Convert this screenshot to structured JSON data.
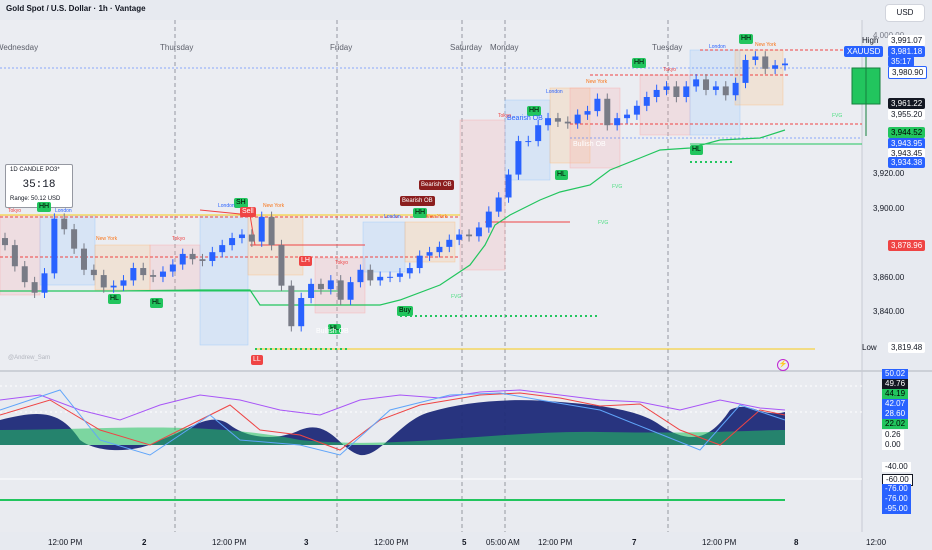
{
  "header": {
    "title": "Gold Spot / U.S. Dollar · 1h · Vantage"
  },
  "currency": "USD",
  "day_labels": [
    "Wednesday",
    "Thursday",
    "Friday",
    "Saturday",
    "Monday",
    "Tuesday"
  ],
  "widget": {
    "title": "1D CANDLE PO3*",
    "timer": "35:18",
    "range": "Range: 50.12 USD"
  },
  "watermark": "@Andrew_Sam",
  "price_axis": [
    "4,000.00",
    "3,980.00",
    "3,960.00",
    "3,940.00",
    "3,920.00",
    "3,900.00",
    "3,880.00",
    "3,860.00",
    "3,840.00"
  ],
  "price_tags": {
    "high_label": "High",
    "high": "3,991.07",
    "current": "3,981.18",
    "symbol": "XAUUSD",
    "countdown": "35:17",
    "tag2": "3,980.90",
    "p1": "3,961.22",
    "p2": "3,955.20",
    "p3": "3,944.52",
    "p4": "3,943.95",
    "p5": "3,943.45",
    "p6": "3,934.38",
    "p7": "3,878.96",
    "low_label": "Low",
    "low": "3,819.48"
  },
  "indicator_axis": {
    "v1": "50.02",
    "v2": "49.76",
    "v3": "44.19",
    "v4": "42.07",
    "v5": "28.60",
    "v6": "22.02",
    "v7": "0.26",
    "v8": "0.00",
    "v9": "-40.00",
    "v10": "-60.00",
    "v11": "-76.00",
    "v12": "-76.00",
    "v13": "-95.00"
  },
  "time_axis": [
    "12:00 PM",
    "2",
    "12:00 PM",
    "3",
    "12:00 PM",
    "5",
    "05:00 AM",
    "12:00 PM",
    "7",
    "12:00 PM",
    "8",
    "12:00"
  ],
  "badges": {
    "hh1": "HH",
    "hl1": "HL",
    "hl2": "HL",
    "sh": "SH",
    "sell": "Sell",
    "ll": "LL",
    "lh": "LH",
    "hl3": "HL",
    "buy": "Buy",
    "hh2": "HH",
    "hh3": "HH",
    "hl4": "HL",
    "hh4": "HH",
    "hl5": "HL",
    "hh5": "HH",
    "bearish_ob": "Bearish OB",
    "bullish_ob": "Bullish OB",
    "bullish_ob2": "Bullish OB",
    "dr1": "Bearish OB",
    "dr2": "Bearish OB"
  },
  "sessions": [
    "Tokyo",
    "London",
    "New York"
  ],
  "fvg": "FVG",
  "colors": {
    "bull": "#2962ff",
    "bear": "#787b86",
    "green": "#22c55e",
    "red": "#ef4444",
    "navy": "#1e2a78"
  },
  "chart_data": {
    "type": "candlestick",
    "price_range": [
      3810,
      4000
    ],
    "candles_close": [
      3878,
      3866,
      3857,
      3851,
      3862,
      3893,
      3887,
      3876,
      3864,
      3861,
      3854,
      3855,
      3858,
      3865,
      3861,
      3860,
      3863,
      3867,
      3873,
      3870,
      3869,
      3874,
      3878,
      3882,
      3884,
      3880,
      3894,
      3878,
      3855,
      3832,
      3848,
      3856,
      3853,
      3858,
      3847,
      3857,
      3864,
      3858,
      3860,
      3860,
      3862,
      3865,
      3872,
      3874,
      3877,
      3881,
      3884,
      3883,
      3888,
      3897,
      3905,
      3918,
      3937,
      3937,
      3946,
      3950,
      3948,
      3947,
      3952,
      3954,
      3961,
      3946,
      3950,
      3952,
      3957,
      3962,
      3966,
      3968,
      3962,
      3968,
      3972,
      3966,
      3968,
      3963,
      3970,
      3983,
      3985,
      3978,
      3980,
      3981
    ]
  }
}
